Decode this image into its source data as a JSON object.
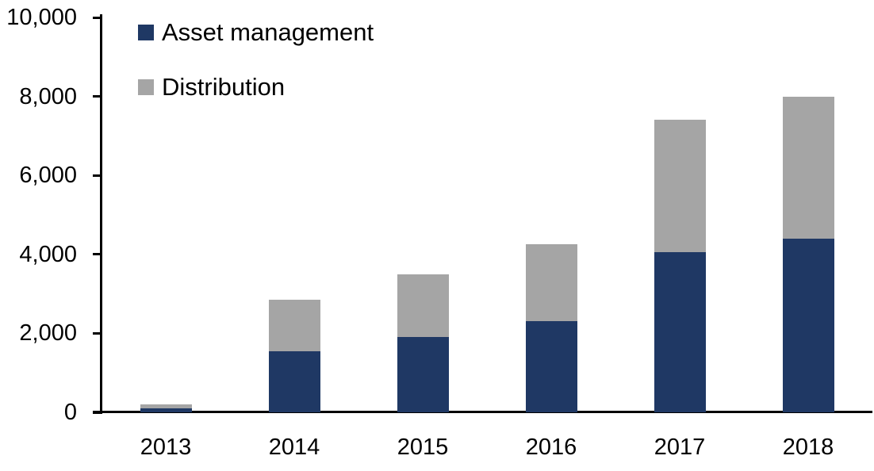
{
  "chart_data": {
    "type": "bar",
    "stacked": true,
    "title": "",
    "xlabel": "",
    "ylabel": "",
    "categories": [
      "2013",
      "2014",
      "2015",
      "2016",
      "2017",
      "2018"
    ],
    "series": [
      {
        "name": "Asset management",
        "color": "#1F3864",
        "values": [
          100,
          1550,
          1900,
          2300,
          4050,
          4400
        ]
      },
      {
        "name": "Distribution",
        "color": "#A5A5A5",
        "values": [
          100,
          1300,
          1600,
          1950,
          3350,
          3600
        ]
      }
    ],
    "totals": [
      200,
      2850,
      3500,
      4250,
      7400,
      8000
    ],
    "ylim": [
      0,
      10000
    ],
    "ytick_step": 2000,
    "ytick_labels": [
      "0",
      "2,000",
      "4,000",
      "6,000",
      "8,000",
      "10,000"
    ],
    "grid": false,
    "legend_position": "top-left",
    "axis_color": "#000000"
  }
}
